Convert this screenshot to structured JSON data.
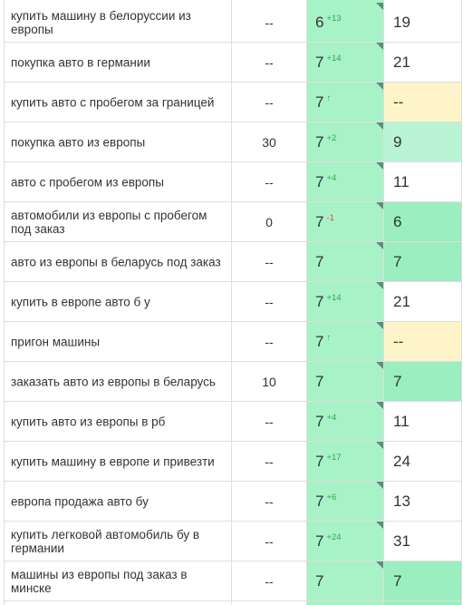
{
  "colors": {
    "position_cell": "#a8f2c8",
    "prev_green_light": "#b9f5d4",
    "prev_green": "#9aeebf",
    "prev_yellow": "#fdf5c9",
    "delta_up": "#2ea84f",
    "delta_down": "#e0483a"
  },
  "rows": [
    {
      "keyword": "купить машину в белоруссии из европы",
      "volume": "--",
      "position": "6",
      "delta": "+13",
      "delta_dir": "up",
      "prev": "19",
      "prev_bg": "white"
    },
    {
      "keyword": "покупка авто в германии",
      "volume": "--",
      "position": "7",
      "delta": "+14",
      "delta_dir": "up",
      "prev": "21",
      "prev_bg": "white"
    },
    {
      "keyword": "купить авто с пробегом за границей",
      "volume": "--",
      "position": "7",
      "delta": "↑",
      "delta_dir": "up",
      "prev": "--",
      "prev_bg": "yellow"
    },
    {
      "keyword": "покупка авто из европы",
      "volume": "30",
      "position": "7",
      "delta": "+2",
      "delta_dir": "up",
      "prev": "9",
      "prev_bg": "green-light"
    },
    {
      "keyword": "авто с пробегом из европы",
      "volume": "--",
      "position": "7",
      "delta": "+4",
      "delta_dir": "up",
      "prev": "11",
      "prev_bg": "white"
    },
    {
      "keyword": "автомобили из европы с пробегом под заказ",
      "volume": "0",
      "position": "7",
      "delta": "-1",
      "delta_dir": "down",
      "prev": "6",
      "prev_bg": "green"
    },
    {
      "keyword": "авто из европы в беларусь под заказ",
      "volume": "--",
      "position": "7",
      "delta": "",
      "delta_dir": "none",
      "prev": "7",
      "prev_bg": "green"
    },
    {
      "keyword": "купить в европе авто б у",
      "volume": "--",
      "position": "7",
      "delta": "+14",
      "delta_dir": "up",
      "prev": "21",
      "prev_bg": "white"
    },
    {
      "keyword": "пригон машины",
      "volume": "--",
      "position": "7",
      "delta": "↑",
      "delta_dir": "up",
      "prev": "--",
      "prev_bg": "yellow"
    },
    {
      "keyword": "заказать авто из европы в беларусь",
      "volume": "10",
      "position": "7",
      "delta": "",
      "delta_dir": "none",
      "prev": "7",
      "prev_bg": "green"
    },
    {
      "keyword": "купить авто из европы в рб",
      "volume": "--",
      "position": "7",
      "delta": "+4",
      "delta_dir": "up",
      "prev": "11",
      "prev_bg": "white"
    },
    {
      "keyword": "купить машину в европе и привезти",
      "volume": "--",
      "position": "7",
      "delta": "+17",
      "delta_dir": "up",
      "prev": "24",
      "prev_bg": "white"
    },
    {
      "keyword": "европа продажа авто бу",
      "volume": "--",
      "position": "7",
      "delta": "+6",
      "delta_dir": "up",
      "prev": "13",
      "prev_bg": "white"
    },
    {
      "keyword": "купить легковой автомобиль бу в германии",
      "volume": "--",
      "position": "7",
      "delta": "+24",
      "delta_dir": "up",
      "prev": "31",
      "prev_bg": "white"
    },
    {
      "keyword": "машины из европы под заказ в минске",
      "volume": "--",
      "position": "7",
      "delta": "",
      "delta_dir": "none",
      "prev": "7",
      "prev_bg": "green"
    }
  ]
}
